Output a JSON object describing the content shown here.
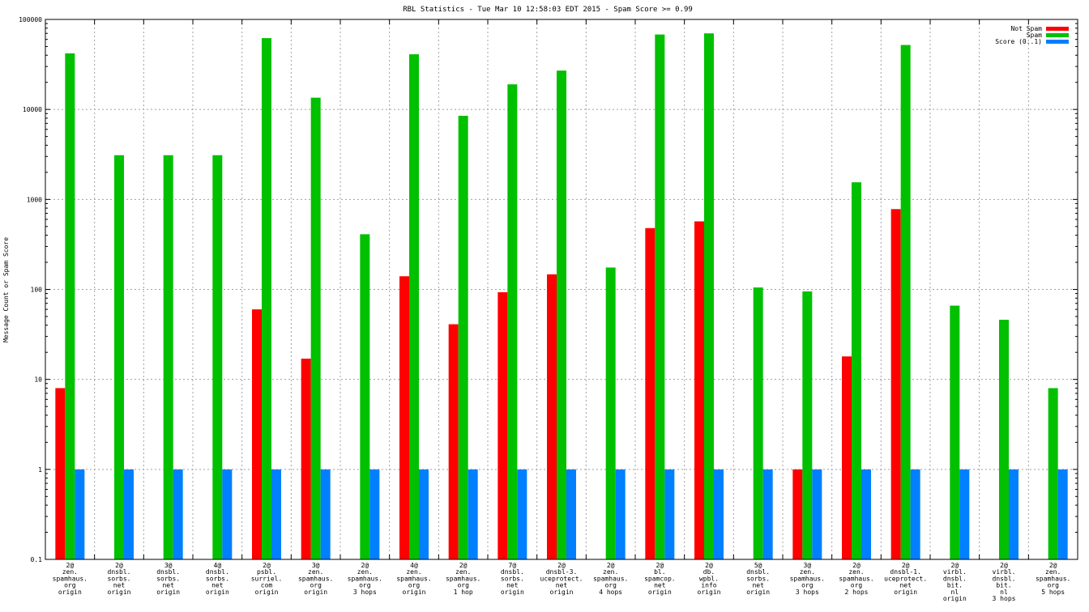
{
  "chart_data": {
    "type": "bar",
    "title": "RBL Statistics - Tue Mar 10 12:58:03 EDT 2015 - Spam Score >= 0.99",
    "xlabel": "",
    "ylabel": "Message Count or Spam Score",
    "yscale": "log",
    "ylim": [
      0.1,
      100000
    ],
    "yticks": [
      "0.1",
      "1",
      "10",
      "100",
      "1000",
      "10000",
      "100000"
    ],
    "grid": true,
    "legend_position": "top-right",
    "categories": [
      [
        "2@",
        "zen.",
        "spamhaus.",
        "org",
        "origin"
      ],
      [
        "2@",
        "dnsbl.",
        "sorbs.",
        "net",
        "origin"
      ],
      [
        "3@",
        "dnsbl.",
        "sorbs.",
        "net",
        "origin"
      ],
      [
        "4@",
        "dnsbl.",
        "sorbs.",
        "net",
        "origin"
      ],
      [
        "2@",
        "psbl.",
        "surriel.",
        "com",
        "origin"
      ],
      [
        "3@",
        "zen.",
        "spamhaus.",
        "org",
        "origin"
      ],
      [
        "2@",
        "zen.",
        "spamhaus.",
        "org",
        "3 hops"
      ],
      [
        "4@",
        "zen.",
        "spamhaus.",
        "org",
        "origin"
      ],
      [
        "2@",
        "zen.",
        "spamhaus.",
        "org",
        "1 hop"
      ],
      [
        "7@",
        "dnsbl.",
        "sorbs.",
        "net",
        "origin"
      ],
      [
        "2@",
        "dnsbl-3.",
        "uceprotect.",
        "net",
        "origin"
      ],
      [
        "2@",
        "zen.",
        "spamhaus.",
        "org",
        "4 hops"
      ],
      [
        "2@",
        "bl.",
        "spamcop.",
        "net",
        "origin"
      ],
      [
        "2@",
        "db.",
        "wpbl.",
        "info",
        "origin"
      ],
      [
        "5@",
        "dnsbl.",
        "sorbs.",
        "net",
        "origin"
      ],
      [
        "3@",
        "zen.",
        "spamhaus.",
        "org",
        "3 hops"
      ],
      [
        "2@",
        "zen.",
        "spamhaus.",
        "org",
        "2 hops"
      ],
      [
        "2@",
        "dnsbl-1.",
        "uceprotect.",
        "net",
        "origin"
      ],
      [
        "2@",
        "virbl.",
        "dnsbl.",
        "bit.",
        "nl",
        "origin"
      ],
      [
        "2@",
        "virbl.",
        "dnsbl.",
        "bit.",
        "nl",
        "3 hops"
      ],
      [
        "2@",
        "zen.",
        "spamhaus.",
        "org",
        "5 hops"
      ]
    ],
    "series": [
      {
        "name": "Not Spam",
        "color": "#ff0000",
        "values": [
          8,
          null,
          null,
          null,
          60,
          17,
          null,
          140,
          41,
          93,
          147,
          null,
          480,
          570,
          null,
          1,
          18,
          780,
          null,
          null,
          null
        ]
      },
      {
        "name": "Spam",
        "color": "#00c000",
        "values": [
          42000,
          3100,
          3100,
          3100,
          62000,
          13500,
          410,
          41000,
          8500,
          19000,
          27000,
          175,
          68000,
          70000,
          105,
          95,
          1550,
          52000,
          66,
          46,
          8
        ]
      },
      {
        "name": "Score (0..1)",
        "color": "#0080ff",
        "values": [
          1,
          1,
          1,
          1,
          1,
          1,
          1,
          1,
          1,
          1,
          1,
          1,
          1,
          1,
          1,
          1,
          1,
          1,
          1,
          1,
          1
        ]
      }
    ]
  }
}
